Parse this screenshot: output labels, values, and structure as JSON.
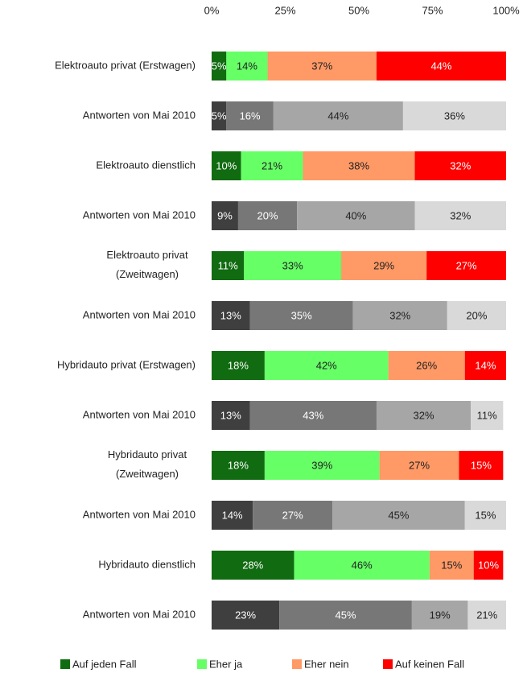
{
  "chart_data": {
    "type": "stacked_barh",
    "categories": [
      "Elektroauto privat (Erstwagen)",
      "Antworten von Mai 2010",
      "Elektroauto dienstlich",
      "Antworten von Mai 2010",
      "Elektroauto privat\n(Zweitwagen)",
      "Antworten von Mai 2010",
      "Hybridauto privat (Erstwagen)",
      "Antworten von Mai 2010",
      "Hybridauto privat\n(Zweitwagen)",
      "Antworten von Mai 2010",
      "Hybridauto dienstlich",
      "Antworten von Mai 2010"
    ],
    "series": [
      {
        "name": "Auf jeden Fall",
        "color": "#116b11",
        "colors": [
          "#116b11",
          "#3f3f3f",
          "#116b11",
          "#3f3f3f",
          "#116b11",
          "#3f3f3f",
          "#116b11",
          "#3f3f3f",
          "#116b11",
          "#3f3f3f",
          "#116b11",
          "#3f3f3f"
        ],
        "values": [
          5,
          5,
          10,
          9,
          11,
          13,
          18,
          13,
          18,
          14,
          28,
          23
        ],
        "value_labels": [
          "5%",
          "5%",
          "10%",
          "9%",
          "11%",
          "13%",
          "18%",
          "13%",
          "18%",
          "14%",
          "28%",
          "23%"
        ]
      },
      {
        "name": "Eher ja",
        "color": "#66ff66",
        "colors": [
          "#66ff66",
          "#777777",
          "#66ff66",
          "#777777",
          "#66ff66",
          "#777777",
          "#66ff66",
          "#777777",
          "#66ff66",
          "#777777",
          "#66ff66",
          "#777777"
        ],
        "values": [
          14,
          16,
          21,
          20,
          33,
          35,
          42,
          43,
          39,
          27,
          46,
          45
        ],
        "value_labels": [
          "14%",
          "16%",
          "21%",
          "20%",
          "33%",
          "35%",
          "42%",
          "43%",
          "39%",
          "27%",
          "46%",
          "45%"
        ]
      },
      {
        "name": "Eher nein",
        "color": "#ff9966",
        "colors": [
          "#ff9966",
          "#a6a6a6",
          "#ff9966",
          "#a6a6a6",
          "#ff9966",
          "#a6a6a6",
          "#ff9966",
          "#a6a6a6",
          "#ff9966",
          "#a6a6a6",
          "#ff9966",
          "#a6a6a6"
        ],
        "values": [
          37,
          44,
          38,
          40,
          29,
          32,
          26,
          32,
          27,
          45,
          15,
          19
        ],
        "value_labels": [
          "37%",
          "44%",
          "38%",
          "40%",
          "29%",
          "32%",
          "26%",
          "32%",
          "27%",
          "45%",
          "15%",
          "19%"
        ]
      },
      {
        "name": "Auf keinen Fall",
        "color": "#ff0000",
        "colors": [
          "#ff0000",
          "#d9d9d9",
          "#ff0000",
          "#d9d9d9",
          "#ff0000",
          "#d9d9d9",
          "#ff0000",
          "#d9d9d9",
          "#ff0000",
          "#d9d9d9",
          "#ff0000",
          "#d9d9d9"
        ],
        "values": [
          44,
          36,
          32,
          32,
          27,
          20,
          14,
          11,
          15,
          15,
          10,
          21
        ],
        "value_labels": [
          "44%",
          "36%",
          "32%",
          "32%",
          "27%",
          "20%",
          "14%",
          "11%",
          "15%",
          "15%",
          "10%",
          "21%"
        ]
      }
    ],
    "xlim": [
      0,
      100
    ],
    "xticks": [
      {
        "value": 0,
        "label": "0%"
      },
      {
        "value": 25,
        "label": "25%"
      },
      {
        "value": 50,
        "label": "50%"
      },
      {
        "value": 75,
        "label": "75%"
      },
      {
        "value": 100,
        "label": "100%"
      }
    ],
    "legend": "bottom"
  }
}
